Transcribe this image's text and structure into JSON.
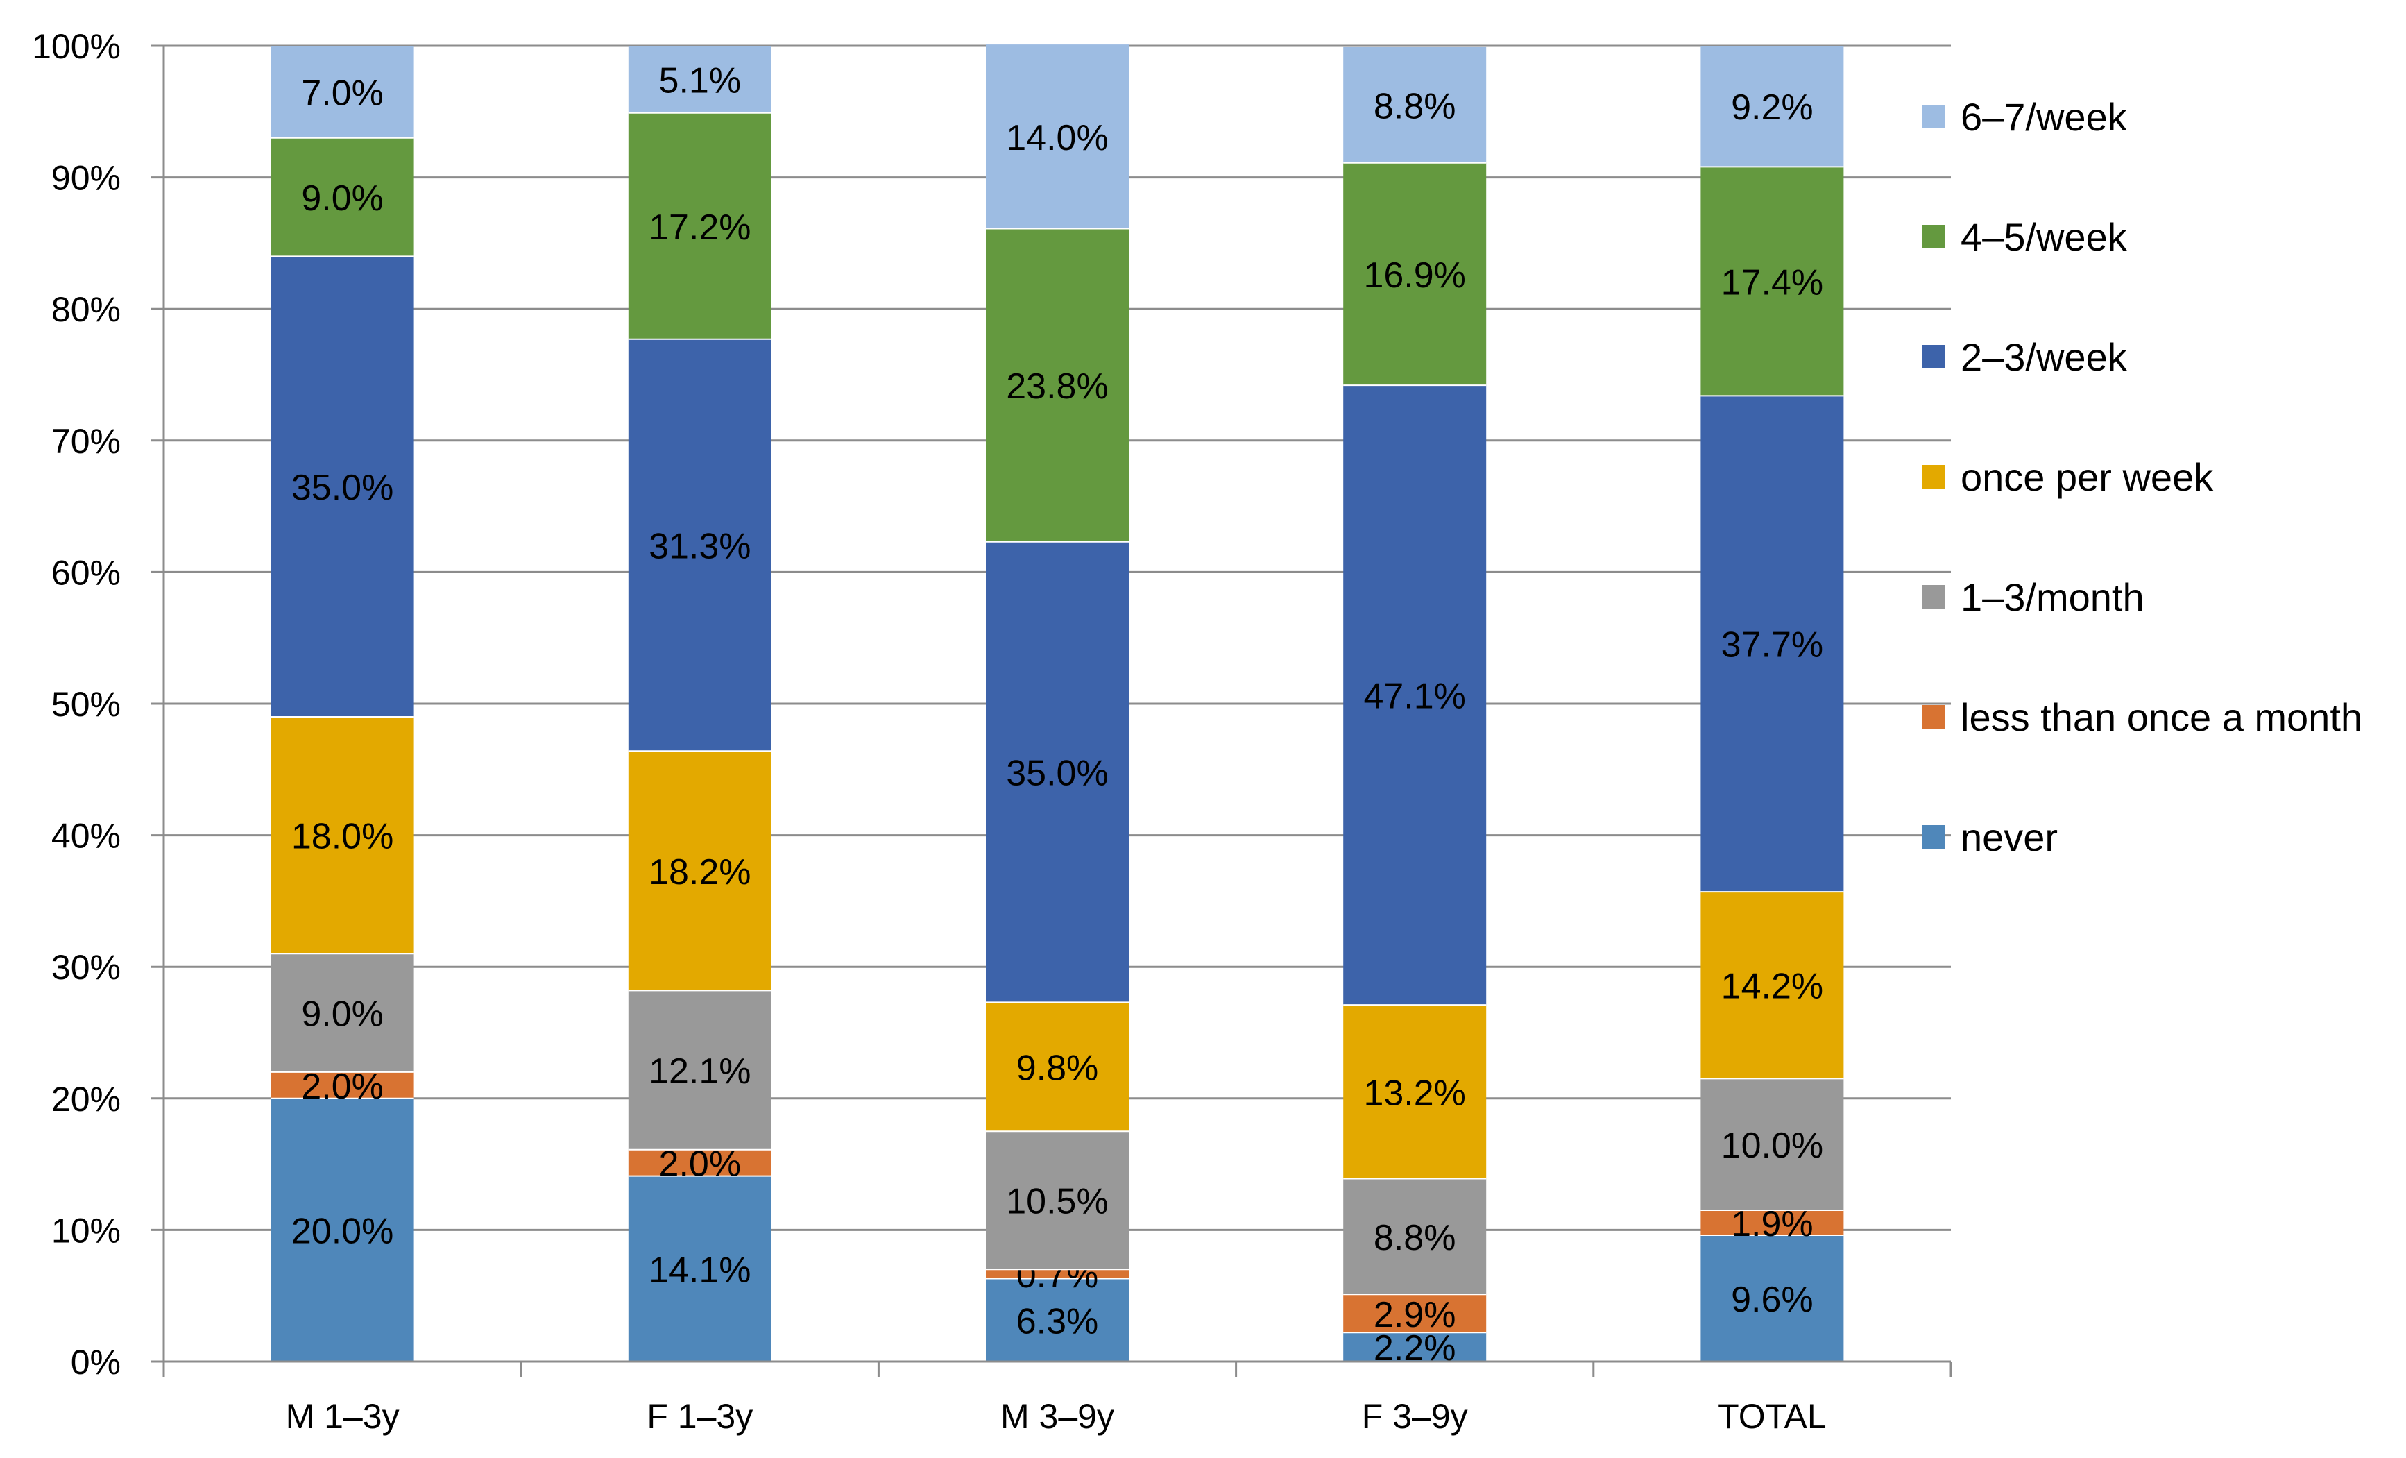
{
  "chart_data": {
    "type": "bar",
    "stacked": true,
    "percent_stacked": true,
    "title": "",
    "xlabel": "",
    "ylabel": "",
    "ylim": [
      0,
      100
    ],
    "y_ticks": [
      "0%",
      "10%",
      "20%",
      "30%",
      "40%",
      "50%",
      "60%",
      "70%",
      "80%",
      "90%",
      "100%"
    ],
    "grid": true,
    "legend_position": "right",
    "categories": [
      "M 1–3y",
      "F 1–3y",
      "M 3–9y",
      "F 3–9y",
      "TOTAL"
    ],
    "series": [
      {
        "name": "never",
        "color": "#4F87BA",
        "values": [
          20.0,
          14.1,
          6.3,
          2.2,
          9.6
        ],
        "labels": [
          "20.0%",
          "14.1%",
          "6.3%",
          "2.2%",
          "9.6%"
        ]
      },
      {
        "name": "less than once a month",
        "color": "#D87332",
        "values": [
          2.0,
          2.0,
          0.7,
          2.9,
          1.9
        ],
        "labels": [
          "2.0%",
          "2.0%",
          "0.7%",
          "2.9%",
          "1.9%"
        ]
      },
      {
        "name": "1–3/month",
        "color": "#999999",
        "values": [
          9.0,
          12.1,
          10.5,
          8.8,
          10.0
        ],
        "labels": [
          "9.0%",
          "12.1%",
          "10.5%",
          "8.8%",
          "10.0%"
        ]
      },
      {
        "name": "once per week",
        "color": "#E3A900",
        "values": [
          18.0,
          18.2,
          9.8,
          13.2,
          14.2
        ],
        "labels": [
          "18.0%",
          "18.2%",
          "9.8%",
          "13.2%",
          "14.2%"
        ]
      },
      {
        "name": "2–3/week",
        "color": "#3D63AA",
        "values": [
          35.0,
          31.3,
          35.0,
          47.1,
          37.7
        ],
        "labels": [
          "35.0%",
          "31.3%",
          "35.0%",
          "47.1%",
          "37.7%"
        ]
      },
      {
        "name": "4–5/week",
        "color": "#64993F",
        "values": [
          9.0,
          17.2,
          23.8,
          16.9,
          17.4
        ],
        "labels": [
          "9.0%",
          "17.2%",
          "23.8%",
          "16.9%",
          "17.4%"
        ]
      },
      {
        "name": "6–7/week",
        "color": "#9DBCE2",
        "values": [
          7.0,
          5.1,
          14.0,
          8.8,
          9.2
        ],
        "labels": [
          "7.0%",
          "5.1%",
          "14.0%",
          "8.8%",
          "9.2%"
        ]
      }
    ],
    "legend_order": [
      "6–7/week",
      "4–5/week",
      "2–3/week",
      "once per week",
      "1–3/month",
      "less than once a month",
      "never"
    ]
  }
}
